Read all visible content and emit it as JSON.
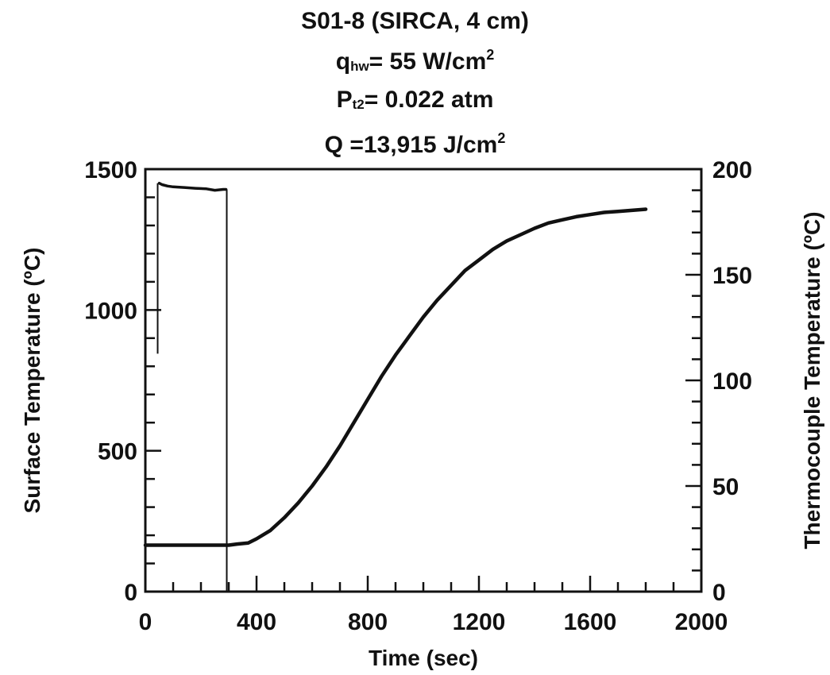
{
  "title": {
    "line1": "S01-8 (SIRCA, 4 cm)",
    "line2_sym": "q",
    "line2_sub": "hw",
    "line2_rest": "= 55 W/cm",
    "line2_sup": "2",
    "line3_sym": "P",
    "line3_sub": "t2",
    "line3_rest": "= 0.022 atm",
    "line4_rest": "Q =13,915 J/cm",
    "line4_sup": "2"
  },
  "chart_data": {
    "type": "line",
    "xlabel": "Time (sec)",
    "ylabel": "Surface Temperature (ºC)",
    "y2label": "Thermocouple Temperature (ºC)",
    "xlim": [
      0,
      2000
    ],
    "ylim": [
      0,
      1500
    ],
    "y2lim": [
      0,
      200
    ],
    "xticks": [
      0,
      400,
      800,
      1200,
      1600,
      2000
    ],
    "yticks": [
      0,
      500,
      1000,
      1500
    ],
    "y2ticks": [
      0,
      50,
      100,
      150,
      200
    ],
    "grid": false,
    "series": [
      {
        "axis": "left",
        "points": [
          [
            50,
            1450
          ],
          [
            60,
            1445
          ],
          [
            80,
            1440
          ],
          [
            100,
            1437
          ],
          [
            140,
            1435
          ],
          [
            180,
            1432
          ],
          [
            220,
            1430
          ],
          [
            250,
            1425
          ],
          [
            280,
            1428
          ],
          [
            290,
            1428
          ]
        ]
      },
      {
        "axis": "right",
        "points": [
          [
            0,
            22
          ],
          [
            100,
            22
          ],
          [
            200,
            22
          ],
          [
            300,
            22
          ],
          [
            330,
            22.5
          ],
          [
            370,
            23
          ],
          [
            400,
            25
          ],
          [
            450,
            29
          ],
          [
            500,
            35
          ],
          [
            550,
            42
          ],
          [
            600,
            50
          ],
          [
            650,
            59
          ],
          [
            700,
            69
          ],
          [
            750,
            80
          ],
          [
            800,
            91
          ],
          [
            850,
            102
          ],
          [
            900,
            112
          ],
          [
            950,
            121
          ],
          [
            1000,
            130
          ],
          [
            1050,
            138
          ],
          [
            1100,
            145
          ],
          [
            1150,
            152
          ],
          [
            1200,
            157
          ],
          [
            1250,
            162
          ],
          [
            1300,
            166
          ],
          [
            1350,
            169
          ],
          [
            1400,
            172
          ],
          [
            1450,
            174.5
          ],
          [
            1500,
            176
          ],
          [
            1550,
            177.5
          ],
          [
            1600,
            178.5
          ],
          [
            1650,
            179.5
          ],
          [
            1700,
            180
          ],
          [
            1750,
            180.5
          ],
          [
            1800,
            181
          ]
        ]
      }
    ]
  }
}
